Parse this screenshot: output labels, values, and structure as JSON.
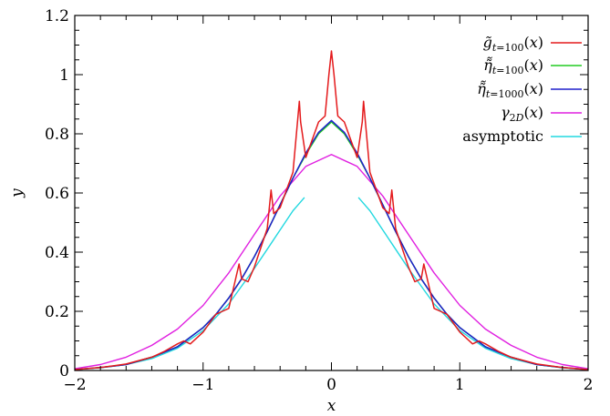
{
  "chart_data": {
    "type": "line",
    "title": "",
    "xlabel": "x",
    "ylabel": "y",
    "xlim": [
      -2,
      2
    ],
    "ylim": [
      0,
      1.2
    ],
    "x_ticks": [
      -2,
      -1,
      0,
      1,
      2
    ],
    "x_tick_labels": [
      "−2",
      "−1",
      "0",
      "1",
      "2"
    ],
    "y_ticks": [
      0,
      0.2,
      0.4,
      0.6,
      0.8,
      1.0,
      1.2
    ],
    "y_tick_labels": [
      "0",
      "0.2",
      "0.4",
      "0.6",
      "0.8",
      "1",
      "1.2"
    ],
    "grid": false,
    "legend_position": "top-right",
    "series": [
      {
        "name": "g̃ t=100 (x)",
        "color": "#e41a1c",
        "x": [
          -2.0,
          -1.8,
          -1.6,
          -1.4,
          -1.3,
          -1.2,
          -1.15,
          -1.1,
          -1.0,
          -0.95,
          -0.9,
          -0.85,
          -0.8,
          -0.72,
          -0.7,
          -0.65,
          -0.6,
          -0.5,
          -0.47,
          -0.45,
          -0.4,
          -0.35,
          -0.3,
          -0.25,
          -0.24,
          -0.2,
          -0.1,
          -0.05,
          -0.02,
          0.0,
          0.02,
          0.05,
          0.1,
          0.2,
          0.24,
          0.25,
          0.3,
          0.35,
          0.4,
          0.45,
          0.47,
          0.5,
          0.6,
          0.65,
          0.7,
          0.72,
          0.8,
          0.85,
          0.9,
          0.95,
          1.0,
          1.1,
          1.15,
          1.2,
          1.3,
          1.4,
          1.6,
          1.8,
          2.0
        ],
        "y": [
          0.003,
          0.01,
          0.022,
          0.045,
          0.065,
          0.09,
          0.1,
          0.09,
          0.13,
          0.16,
          0.19,
          0.2,
          0.21,
          0.36,
          0.31,
          0.3,
          0.35,
          0.48,
          0.61,
          0.53,
          0.55,
          0.61,
          0.67,
          0.91,
          0.84,
          0.72,
          0.84,
          0.86,
          1.0,
          1.08,
          1.0,
          0.86,
          0.84,
          0.72,
          0.84,
          0.91,
          0.67,
          0.61,
          0.55,
          0.53,
          0.61,
          0.48,
          0.35,
          0.3,
          0.31,
          0.36,
          0.21,
          0.2,
          0.19,
          0.16,
          0.13,
          0.09,
          0.1,
          0.09,
          0.065,
          0.045,
          0.022,
          0.01,
          0.003
        ]
      },
      {
        "name": "η̃̃ t=100 (x)",
        "color": "#22cc22",
        "x": [
          -2.0,
          -1.8,
          -1.6,
          -1.4,
          -1.2,
          -1.0,
          -0.9,
          -0.8,
          -0.7,
          -0.6,
          -0.5,
          -0.4,
          -0.3,
          -0.2,
          -0.1,
          0.0,
          0.1,
          0.2,
          0.3,
          0.4,
          0.5,
          0.6,
          0.7,
          0.8,
          0.9,
          1.0,
          1.2,
          1.4,
          1.6,
          1.8,
          2.0
        ],
        "y": [
          0.003,
          0.01,
          0.02,
          0.045,
          0.08,
          0.145,
          0.19,
          0.245,
          0.31,
          0.385,
          0.47,
          0.56,
          0.65,
          0.73,
          0.8,
          0.84,
          0.8,
          0.73,
          0.65,
          0.56,
          0.47,
          0.385,
          0.31,
          0.245,
          0.19,
          0.145,
          0.08,
          0.045,
          0.02,
          0.01,
          0.003
        ]
      },
      {
        "name": "η̃̃ t=1000 (x)",
        "color": "#1f1fcc",
        "x": [
          -2.0,
          -1.8,
          -1.6,
          -1.4,
          -1.2,
          -1.0,
          -0.9,
          -0.8,
          -0.7,
          -0.6,
          -0.5,
          -0.4,
          -0.3,
          -0.2,
          -0.1,
          0.0,
          0.1,
          0.2,
          0.3,
          0.4,
          0.5,
          0.6,
          0.7,
          0.8,
          0.9,
          1.0,
          1.2,
          1.4,
          1.6,
          1.8,
          2.0
        ],
        "y": [
          0.003,
          0.01,
          0.02,
          0.045,
          0.08,
          0.145,
          0.19,
          0.245,
          0.31,
          0.385,
          0.47,
          0.56,
          0.65,
          0.735,
          0.805,
          0.845,
          0.805,
          0.735,
          0.65,
          0.56,
          0.47,
          0.385,
          0.31,
          0.245,
          0.19,
          0.145,
          0.08,
          0.045,
          0.02,
          0.01,
          0.003
        ]
      },
      {
        "name": "γ 2D (x)",
        "color": "#e020e0",
        "x": [
          -2.0,
          -1.8,
          -1.6,
          -1.4,
          -1.2,
          -1.0,
          -0.8,
          -0.6,
          -0.4,
          -0.2,
          0.0,
          0.2,
          0.4,
          0.6,
          0.8,
          1.0,
          1.2,
          1.4,
          1.6,
          1.8,
          2.0
        ],
        "y": [
          0.006,
          0.02,
          0.045,
          0.085,
          0.14,
          0.22,
          0.33,
          0.46,
          0.59,
          0.69,
          0.73,
          0.69,
          0.59,
          0.46,
          0.33,
          0.22,
          0.14,
          0.085,
          0.045,
          0.02,
          0.006
        ]
      },
      {
        "name": "asymptotic",
        "color": "#22d8e0",
        "segments": [
          {
            "x": [
              -2.0,
              -1.8,
              -1.6,
              -1.4,
              -1.2,
              -1.0,
              -0.8,
              -0.6,
              -0.5,
              -0.4,
              -0.3,
              -0.25,
              -0.21
            ],
            "y": [
              0.003,
              0.009,
              0.02,
              0.04,
              0.075,
              0.135,
              0.225,
              0.345,
              0.41,
              0.475,
              0.54,
              0.565,
              0.585
            ]
          },
          {
            "x": [
              0.21,
              0.25,
              0.3,
              0.4,
              0.5,
              0.6,
              0.8,
              1.0,
              1.2,
              1.4,
              1.6,
              1.8,
              2.0
            ],
            "y": [
              0.585,
              0.565,
              0.54,
              0.475,
              0.41,
              0.345,
              0.225,
              0.135,
              0.075,
              0.04,
              0.02,
              0.009,
              0.003
            ]
          }
        ]
      }
    ]
  }
}
